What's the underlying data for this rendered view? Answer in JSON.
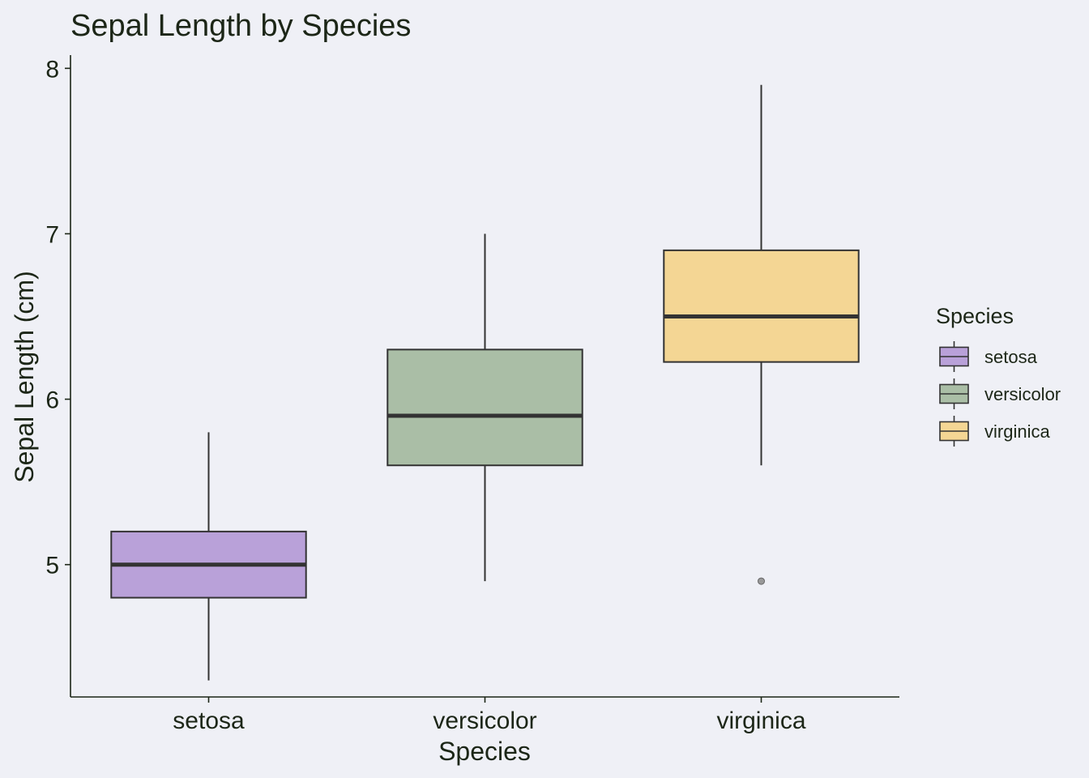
{
  "chart_data": {
    "type": "boxplot",
    "title": "Sepal Length by Species",
    "xlabel": "Species",
    "ylabel": "Sepal Length (cm)",
    "ylim": [
      4.2,
      8.08
    ],
    "yticks": [
      5,
      6,
      7,
      8
    ],
    "ytick_labels": [
      "5",
      "6",
      "7",
      "8"
    ],
    "categories": [
      "setosa",
      "versicolor",
      "virginica"
    ],
    "colors": [
      "#b9a1d9",
      "#aabea6",
      "#f4d694"
    ],
    "outline_color": "#333333",
    "outlier_color": "#999999",
    "boxes": [
      {
        "category": "setosa",
        "min": 4.3,
        "q1": 4.8,
        "median": 5.0,
        "q3": 5.2,
        "max": 5.8,
        "outliers": []
      },
      {
        "category": "versicolor",
        "min": 4.9,
        "q1": 5.6,
        "median": 5.9,
        "q3": 6.3,
        "max": 7.0,
        "outliers": []
      },
      {
        "category": "virginica",
        "min": 5.6,
        "q1": 6.225,
        "median": 6.5,
        "q3": 6.9,
        "max": 7.9,
        "outliers": [
          4.9
        ]
      }
    ],
    "grid": false,
    "legend": {
      "title": "Species",
      "position": "right",
      "entries": [
        "setosa",
        "versicolor",
        "virginica"
      ]
    }
  }
}
